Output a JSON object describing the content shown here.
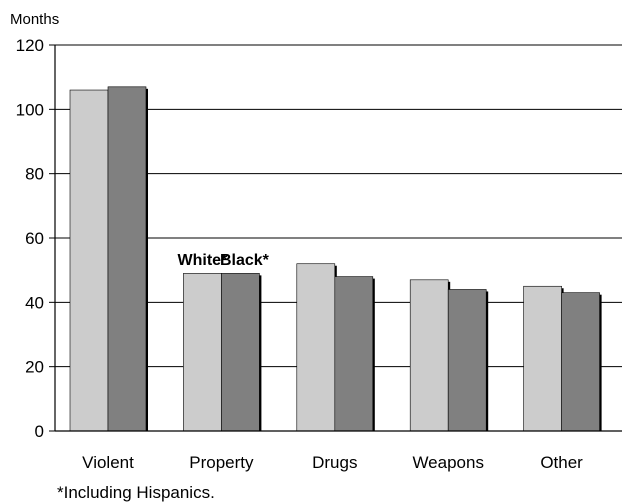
{
  "chart_data": {
    "type": "bar",
    "y_unit_label": "Months",
    "categories": [
      "Violent",
      "Property",
      "Drugs",
      "Weapons",
      "Other"
    ],
    "series": [
      {
        "name": "White*",
        "color": "#cccccc",
        "values": [
          106,
          49,
          52,
          47,
          45
        ]
      },
      {
        "name": "Black*",
        "color": "#808080",
        "values": [
          107,
          49,
          48,
          44,
          43
        ]
      }
    ],
    "ylim": [
      0,
      120
    ],
    "yticks": [
      "0",
      "20",
      "40",
      "60",
      "80",
      "100",
      "120"
    ],
    "grid": true,
    "legend_placement": "inline, above Property bars",
    "footnote": "*Including Hispanics."
  }
}
